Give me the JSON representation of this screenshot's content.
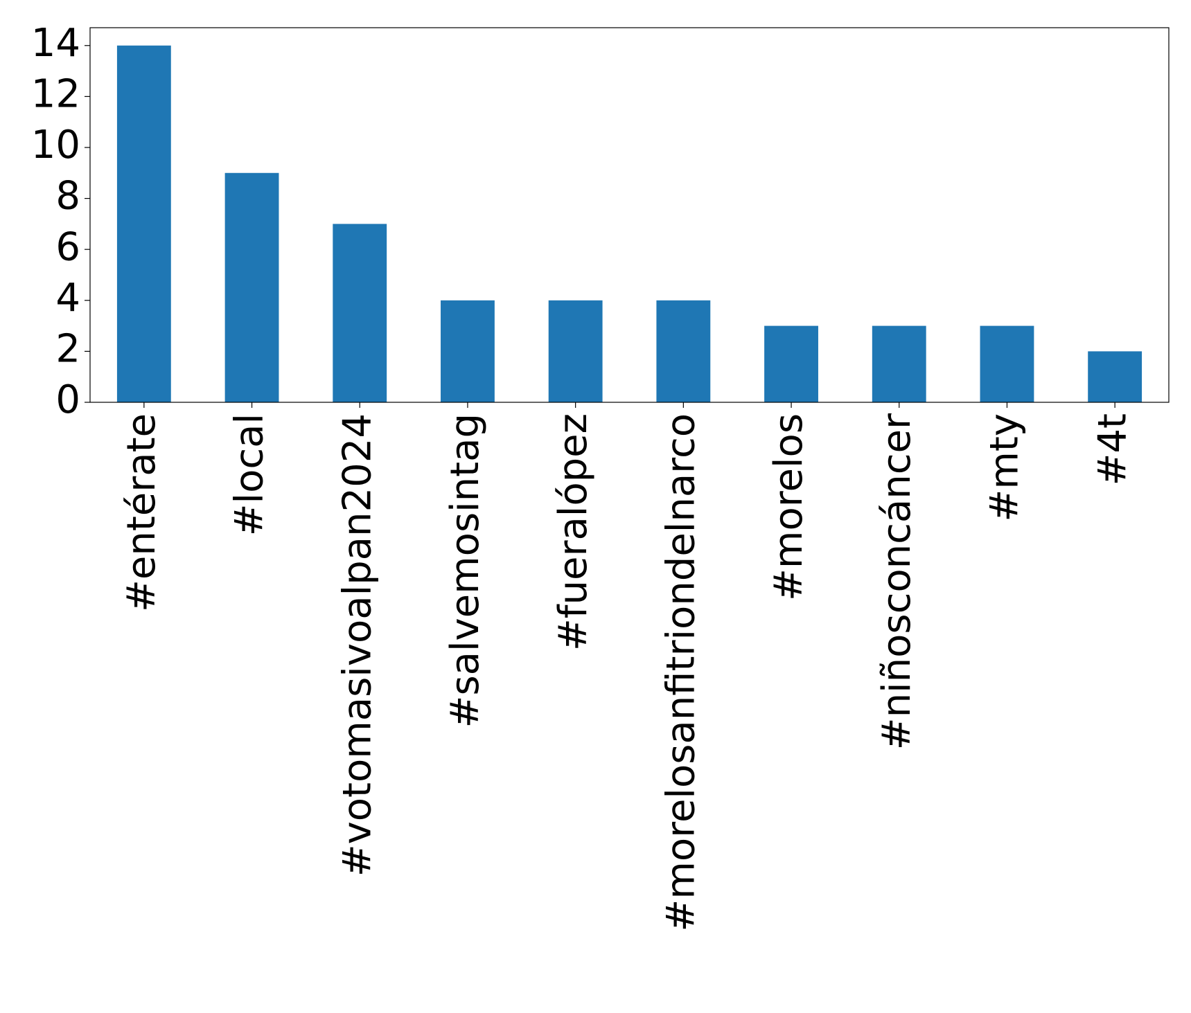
{
  "chart_data": {
    "type": "bar",
    "categories": [
      "#entérate",
      "#local",
      "#votomasivoalpan2024",
      "#salvemosintag",
      "#fueralópez",
      "#morelosanfitriondelnarco",
      "#morelos",
      "#niñosconcáncer",
      "#mty",
      "#4t"
    ],
    "values": [
      14,
      9,
      7,
      4,
      4,
      4,
      3,
      3,
      3,
      2
    ],
    "color": "#1f77b4",
    "ylim": [
      0,
      14.7
    ],
    "yticks": [
      0,
      2,
      4,
      6,
      8,
      10,
      12,
      14
    ],
    "grid": false
  }
}
